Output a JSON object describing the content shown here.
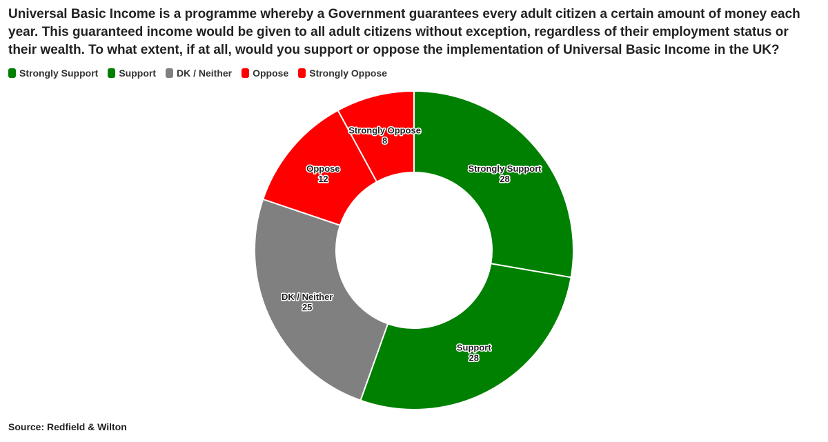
{
  "title": "Universal Basic Income is a programme whereby a Government guarantees every adult citizen a certain amount of money each year. This guaranteed income would be given to all adult citizens without exception, regardless of their employment status or their wealth. To what extent, if at all, would you support or oppose the implementation of Universal Basic Income in the UK?",
  "source": "Source: Redfield & Wilton",
  "chart_data": {
    "type": "pie",
    "style": "donut",
    "legend_position": "top-left",
    "categories": [
      "Strongly Support",
      "Support",
      "DK / Neither",
      "Oppose",
      "Strongly Oppose"
    ],
    "values": [
      28,
      28,
      25,
      12,
      8
    ],
    "colors": [
      "#008000",
      "#008000",
      "#808080",
      "#ff0000",
      "#ff0000"
    ]
  }
}
